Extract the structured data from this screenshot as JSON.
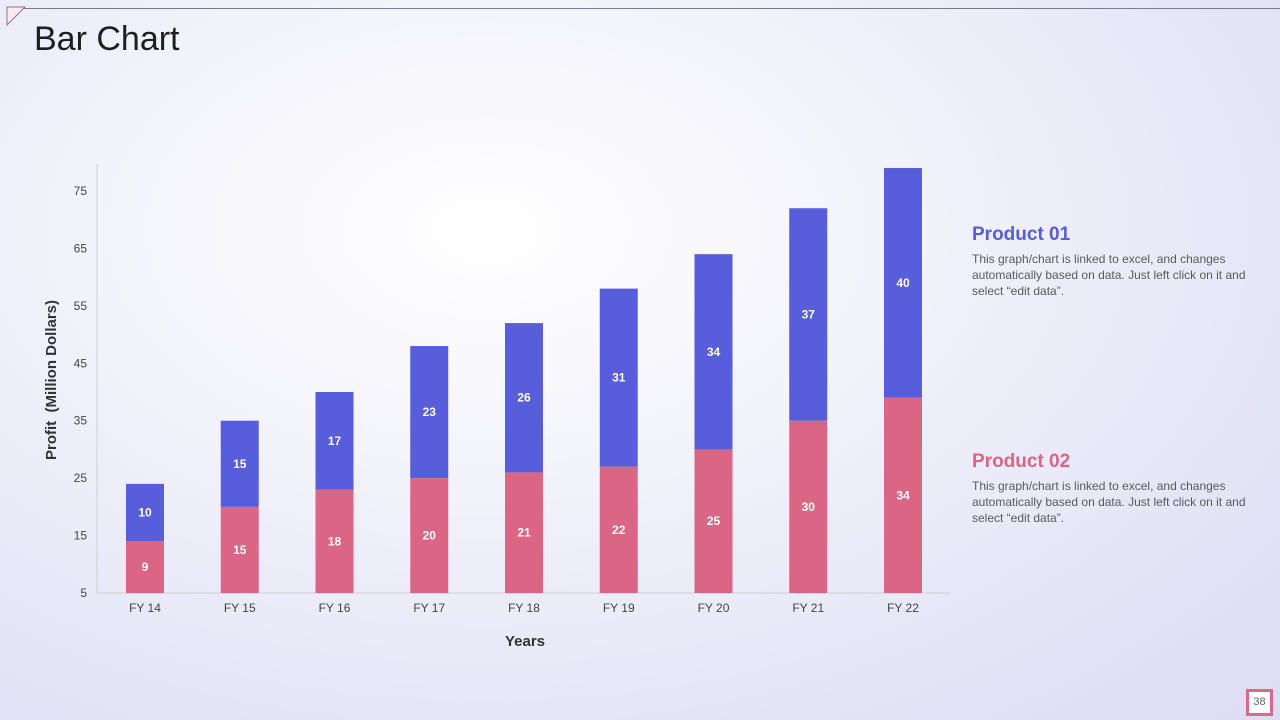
{
  "slide": {
    "title": "Bar Chart",
    "page_number": "38"
  },
  "colors": {
    "product_01": "#575ddb",
    "product_02": "#db6585",
    "axis": "#cfcfd6",
    "tick_label": "#444444"
  },
  "legend": {
    "product_01": {
      "title": "Product 01",
      "description": "This graph/chart is linked to excel, and changes automatically based on data. Just left click on it and select “edit data”."
    },
    "product_02": {
      "title": "Product 02",
      "description": "This graph/chart is linked to excel, and changes automatically based on data. Just left click on it and select “edit data”."
    }
  },
  "chart_data": {
    "type": "bar",
    "stacked": true,
    "title": "",
    "xlabel": "Years",
    "ylabel": "Profit  (Million Dollars)",
    "categories": [
      "FY 14",
      "FY 15",
      "FY 16",
      "FY 17",
      "FY 18",
      "FY 19",
      "FY 20",
      "FY 21",
      "FY 22"
    ],
    "y_ticks": [
      5,
      15,
      25,
      35,
      45,
      55,
      65,
      75
    ],
    "ylim": [
      5,
      80
    ],
    "grid": false,
    "legend_placement": "right",
    "series": [
      {
        "name": "Product 02",
        "color": "#db6585",
        "values": [
          9,
          15,
          18,
          20,
          21,
          22,
          25,
          30,
          34
        ]
      },
      {
        "name": "Product 01",
        "color": "#575ddb",
        "values": [
          10,
          15,
          17,
          23,
          26,
          31,
          34,
          37,
          40
        ]
      }
    ]
  }
}
